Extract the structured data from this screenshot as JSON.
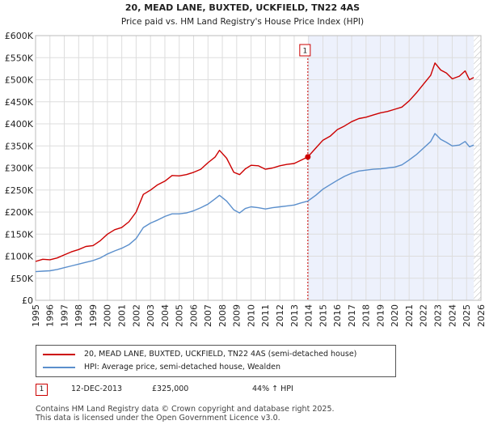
{
  "chart_data": {
    "type": "line",
    "title": "20, MEAD LANE, BUXTED, UCKFIELD, TN22 4AS",
    "subtitle": "Price paid vs. HM Land Registry's House Price Index (HPI)",
    "xlim": [
      1995,
      2026
    ],
    "ylim": [
      0,
      600000
    ],
    "x_ticks": [
      1995,
      1996,
      1997,
      1998,
      1999,
      2000,
      2001,
      2002,
      2003,
      2004,
      2005,
      2006,
      2007,
      2008,
      2009,
      2010,
      2011,
      2012,
      2013,
      2014,
      2015,
      2016,
      2017,
      2018,
      2019,
      2020,
      2021,
      2022,
      2023,
      2024,
      2025,
      2026
    ],
    "y_ticks": [
      {
        "value": 0,
        "label": "£0"
      },
      {
        "value": 50000,
        "label": "£50K"
      },
      {
        "value": 100000,
        "label": "£100K"
      },
      {
        "value": 150000,
        "label": "£150K"
      },
      {
        "value": 200000,
        "label": "£200K"
      },
      {
        "value": 250000,
        "label": "£250K"
      },
      {
        "value": 300000,
        "label": "£300K"
      },
      {
        "value": 350000,
        "label": "£350K"
      },
      {
        "value": 400000,
        "label": "£400K"
      },
      {
        "value": 450000,
        "label": "£450K"
      },
      {
        "value": 500000,
        "label": "£500K"
      },
      {
        "value": 550000,
        "label": "£550K"
      },
      {
        "value": 600000,
        "label": "£600K"
      }
    ],
    "grid": true,
    "highlight_region": {
      "from": 2013.95,
      "to": 2025.5
    },
    "future_hatch_from": 2025.5,
    "series": [
      {
        "name": "20, MEAD LANE, BUXTED, UCKFIELD, TN22 4AS (semi-detached house)",
        "color": "#cc0000",
        "x": [
          1995,
          1995.5,
          1996,
          1996.5,
          1997,
          1997.5,
          1998,
          1998.5,
          1999,
          1999.5,
          2000,
          2000.5,
          2001,
          2001.5,
          2002,
          2002.5,
          2003,
          2003.5,
          2004,
          2004.5,
          2005,
          2005.5,
          2006,
          2006.5,
          2007,
          2007.5,
          2007.8,
          2008.3,
          2008.8,
          2009.2,
          2009.6,
          2010,
          2010.5,
          2011,
          2011.5,
          2012,
          2012.5,
          2013,
          2013.5,
          2013.95,
          2014.5,
          2015,
          2015.5,
          2016,
          2016.5,
          2017,
          2017.5,
          2018,
          2018.5,
          2019,
          2019.5,
          2020,
          2020.5,
          2021,
          2021.5,
          2022,
          2022.5,
          2022.8,
          2023.2,
          2023.6,
          2024,
          2024.5,
          2024.9,
          2025.2,
          2025.5
        ],
        "y": [
          88000,
          93000,
          92000,
          96000,
          103000,
          110000,
          115000,
          122000,
          124000,
          135000,
          150000,
          160000,
          165000,
          178000,
          200000,
          240000,
          250000,
          262000,
          270000,
          283000,
          282000,
          285000,
          290000,
          297000,
          312000,
          325000,
          340000,
          322000,
          290000,
          285000,
          298000,
          306000,
          305000,
          297000,
          300000,
          305000,
          308000,
          310000,
          318000,
          325000,
          345000,
          363000,
          372000,
          387000,
          395000,
          405000,
          412000,
          415000,
          420000,
          425000,
          428000,
          433000,
          438000,
          452000,
          470000,
          490000,
          510000,
          538000,
          522000,
          515000,
          502000,
          508000,
          520000,
          500000,
          505000
        ]
      },
      {
        "name": "HPI: Average price, semi-detached house, Wealden",
        "color": "#5b8fcc",
        "x": [
          1995,
          1995.5,
          1996,
          1996.5,
          1997,
          1997.5,
          1998,
          1998.5,
          1999,
          1999.5,
          2000,
          2000.5,
          2001,
          2001.5,
          2002,
          2002.5,
          2003,
          2003.5,
          2004,
          2004.5,
          2005,
          2005.5,
          2006,
          2006.5,
          2007,
          2007.5,
          2007.8,
          2008.3,
          2008.8,
          2009.2,
          2009.6,
          2010,
          2010.5,
          2011,
          2011.5,
          2012,
          2012.5,
          2013,
          2013.5,
          2013.95,
          2014.5,
          2015,
          2015.5,
          2016,
          2016.5,
          2017,
          2017.5,
          2018,
          2018.5,
          2019,
          2019.5,
          2020,
          2020.5,
          2021,
          2021.5,
          2022,
          2022.5,
          2022.8,
          2023.2,
          2023.6,
          2024,
          2024.5,
          2024.9,
          2025.2,
          2025.5
        ],
        "y": [
          65000,
          66000,
          67000,
          70000,
          74000,
          78000,
          82000,
          86000,
          90000,
          96000,
          105000,
          112000,
          118000,
          126000,
          140000,
          165000,
          175000,
          182000,
          190000,
          196000,
          196000,
          198000,
          203000,
          210000,
          218000,
          230000,
          238000,
          225000,
          205000,
          198000,
          208000,
          212000,
          210000,
          207000,
          210000,
          212000,
          214000,
          216000,
          221000,
          225000,
          238000,
          252000,
          262000,
          272000,
          281000,
          288000,
          293000,
          295000,
          297000,
          298000,
          300000,
          302000,
          307000,
          318000,
          330000,
          345000,
          360000,
          378000,
          365000,
          358000,
          350000,
          352000,
          360000,
          348000,
          352000
        ]
      }
    ],
    "annotations": [
      {
        "label": "1",
        "x": 2013.95,
        "y": 325000,
        "date": "12-DEC-2013",
        "price": "£325,000",
        "hpi_change": "44% ↑ HPI"
      }
    ]
  },
  "legend": {
    "property_label": "20, MEAD LANE, BUXTED, UCKFIELD, TN22 4AS (semi-detached house)",
    "hpi_label": "HPI: Average price, semi-detached house, Wealden"
  },
  "footer": {
    "line1": "Contains HM Land Registry data © Crown copyright and database right 2025.",
    "line2": "This data is licensed under the Open Government Licence v3.0."
  }
}
